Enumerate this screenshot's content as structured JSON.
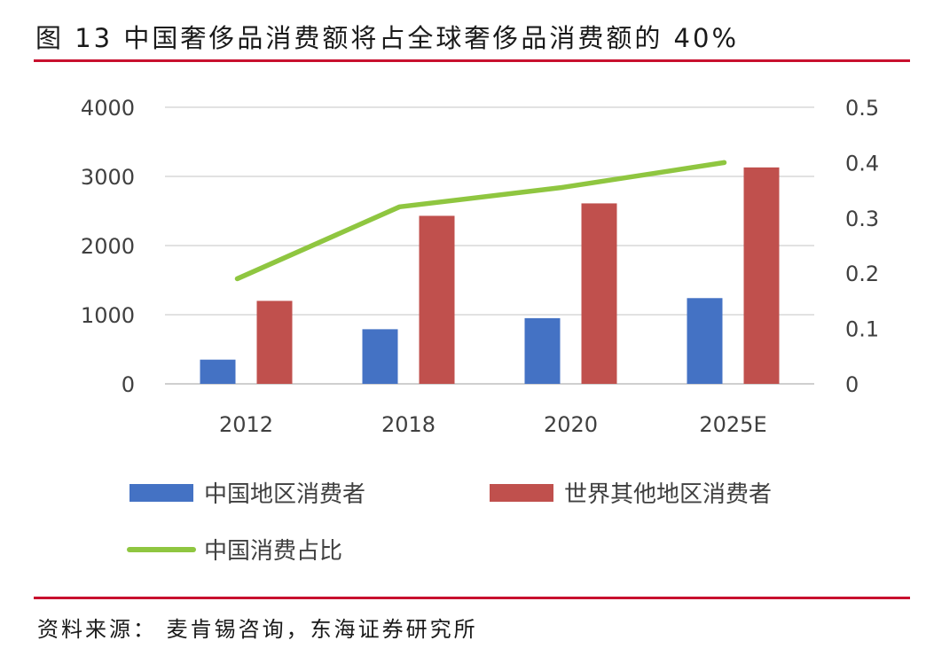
{
  "figure": {
    "title": "图 13  中国奢侈品消费额将占全球奢侈品消费额的 40%",
    "source": "资料来源：  麦肯锡咨询，东海证券研究所"
  },
  "colors": {
    "china": "#4472c4",
    "rest_of_world": "#c0504d",
    "share_line": "#8fc640",
    "rule": "#c8102e",
    "grid": "#d9d9d9"
  },
  "chart_data": {
    "type": "bar",
    "categories": [
      "2012",
      "2018",
      "2020",
      "2025E"
    ],
    "series": [
      {
        "name": "中国地区消费者",
        "type": "bar",
        "axis": "left",
        "values": [
          350,
          790,
          950,
          1240
        ]
      },
      {
        "name": "世界其他地区消费者",
        "type": "bar",
        "axis": "left",
        "values": [
          1200,
          2430,
          2610,
          3130
        ]
      },
      {
        "name": "中国消费占比",
        "type": "line",
        "axis": "right",
        "values": [
          0.19,
          0.32,
          0.355,
          0.4
        ]
      }
    ],
    "y_left": {
      "min": 0,
      "max": 4000,
      "ticks": [
        "4000",
        "3000",
        "2000",
        "1000",
        "0"
      ],
      "tick_values": [
        4000,
        3000,
        2000,
        1000,
        0
      ]
    },
    "y_right": {
      "min": 0,
      "max": 0.5,
      "ticks": [
        "0.5",
        "0.4",
        "0.3",
        "0.2",
        "0.1",
        "0"
      ],
      "tick_values": [
        0.5,
        0.4,
        0.3,
        0.2,
        0.1,
        0
      ]
    },
    "grid": true,
    "legend_position": "bottom"
  }
}
